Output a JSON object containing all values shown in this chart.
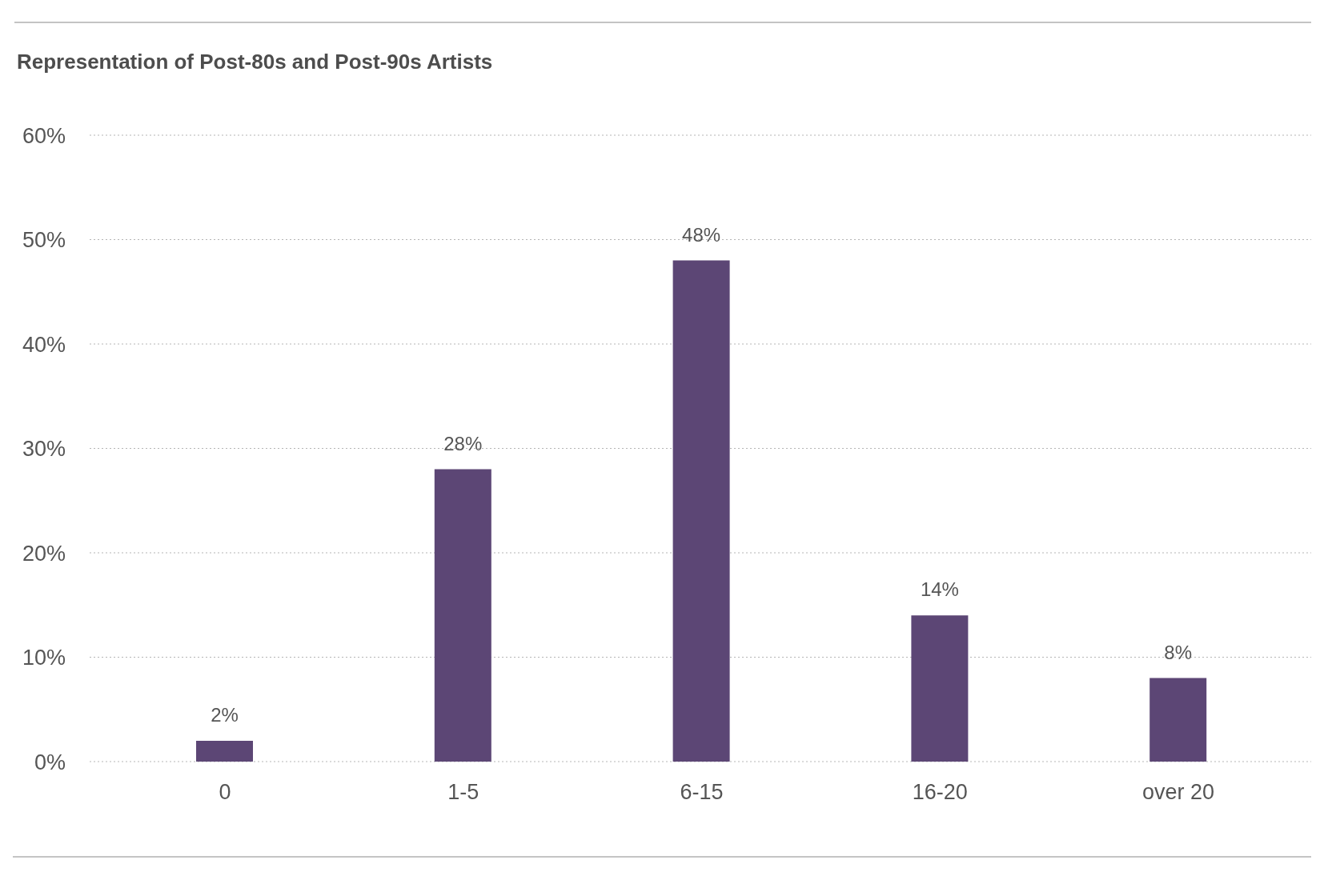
{
  "chart_data": {
    "type": "bar",
    "title": "Representation of Post-80s and Post-90s Artists",
    "categories": [
      "0",
      "1-5",
      "6-15",
      "16-20",
      "over 20"
    ],
    "values": [
      2,
      28,
      48,
      14,
      8
    ],
    "value_labels": [
      "2%",
      "28%",
      "48%",
      "14%",
      "8%"
    ],
    "color": "#5c4675",
    "ylim": [
      0,
      60
    ],
    "yticks": [
      {
        "value": 0,
        "label": "0%"
      },
      {
        "value": 10,
        "label": "10%"
      },
      {
        "value": 20,
        "label": "20%"
      },
      {
        "value": 30,
        "label": "30%"
      },
      {
        "value": 40,
        "label": "40%"
      },
      {
        "value": 50,
        "label": "50%"
      },
      {
        "value": 60,
        "label": "60%"
      }
    ],
    "grid": "y"
  }
}
